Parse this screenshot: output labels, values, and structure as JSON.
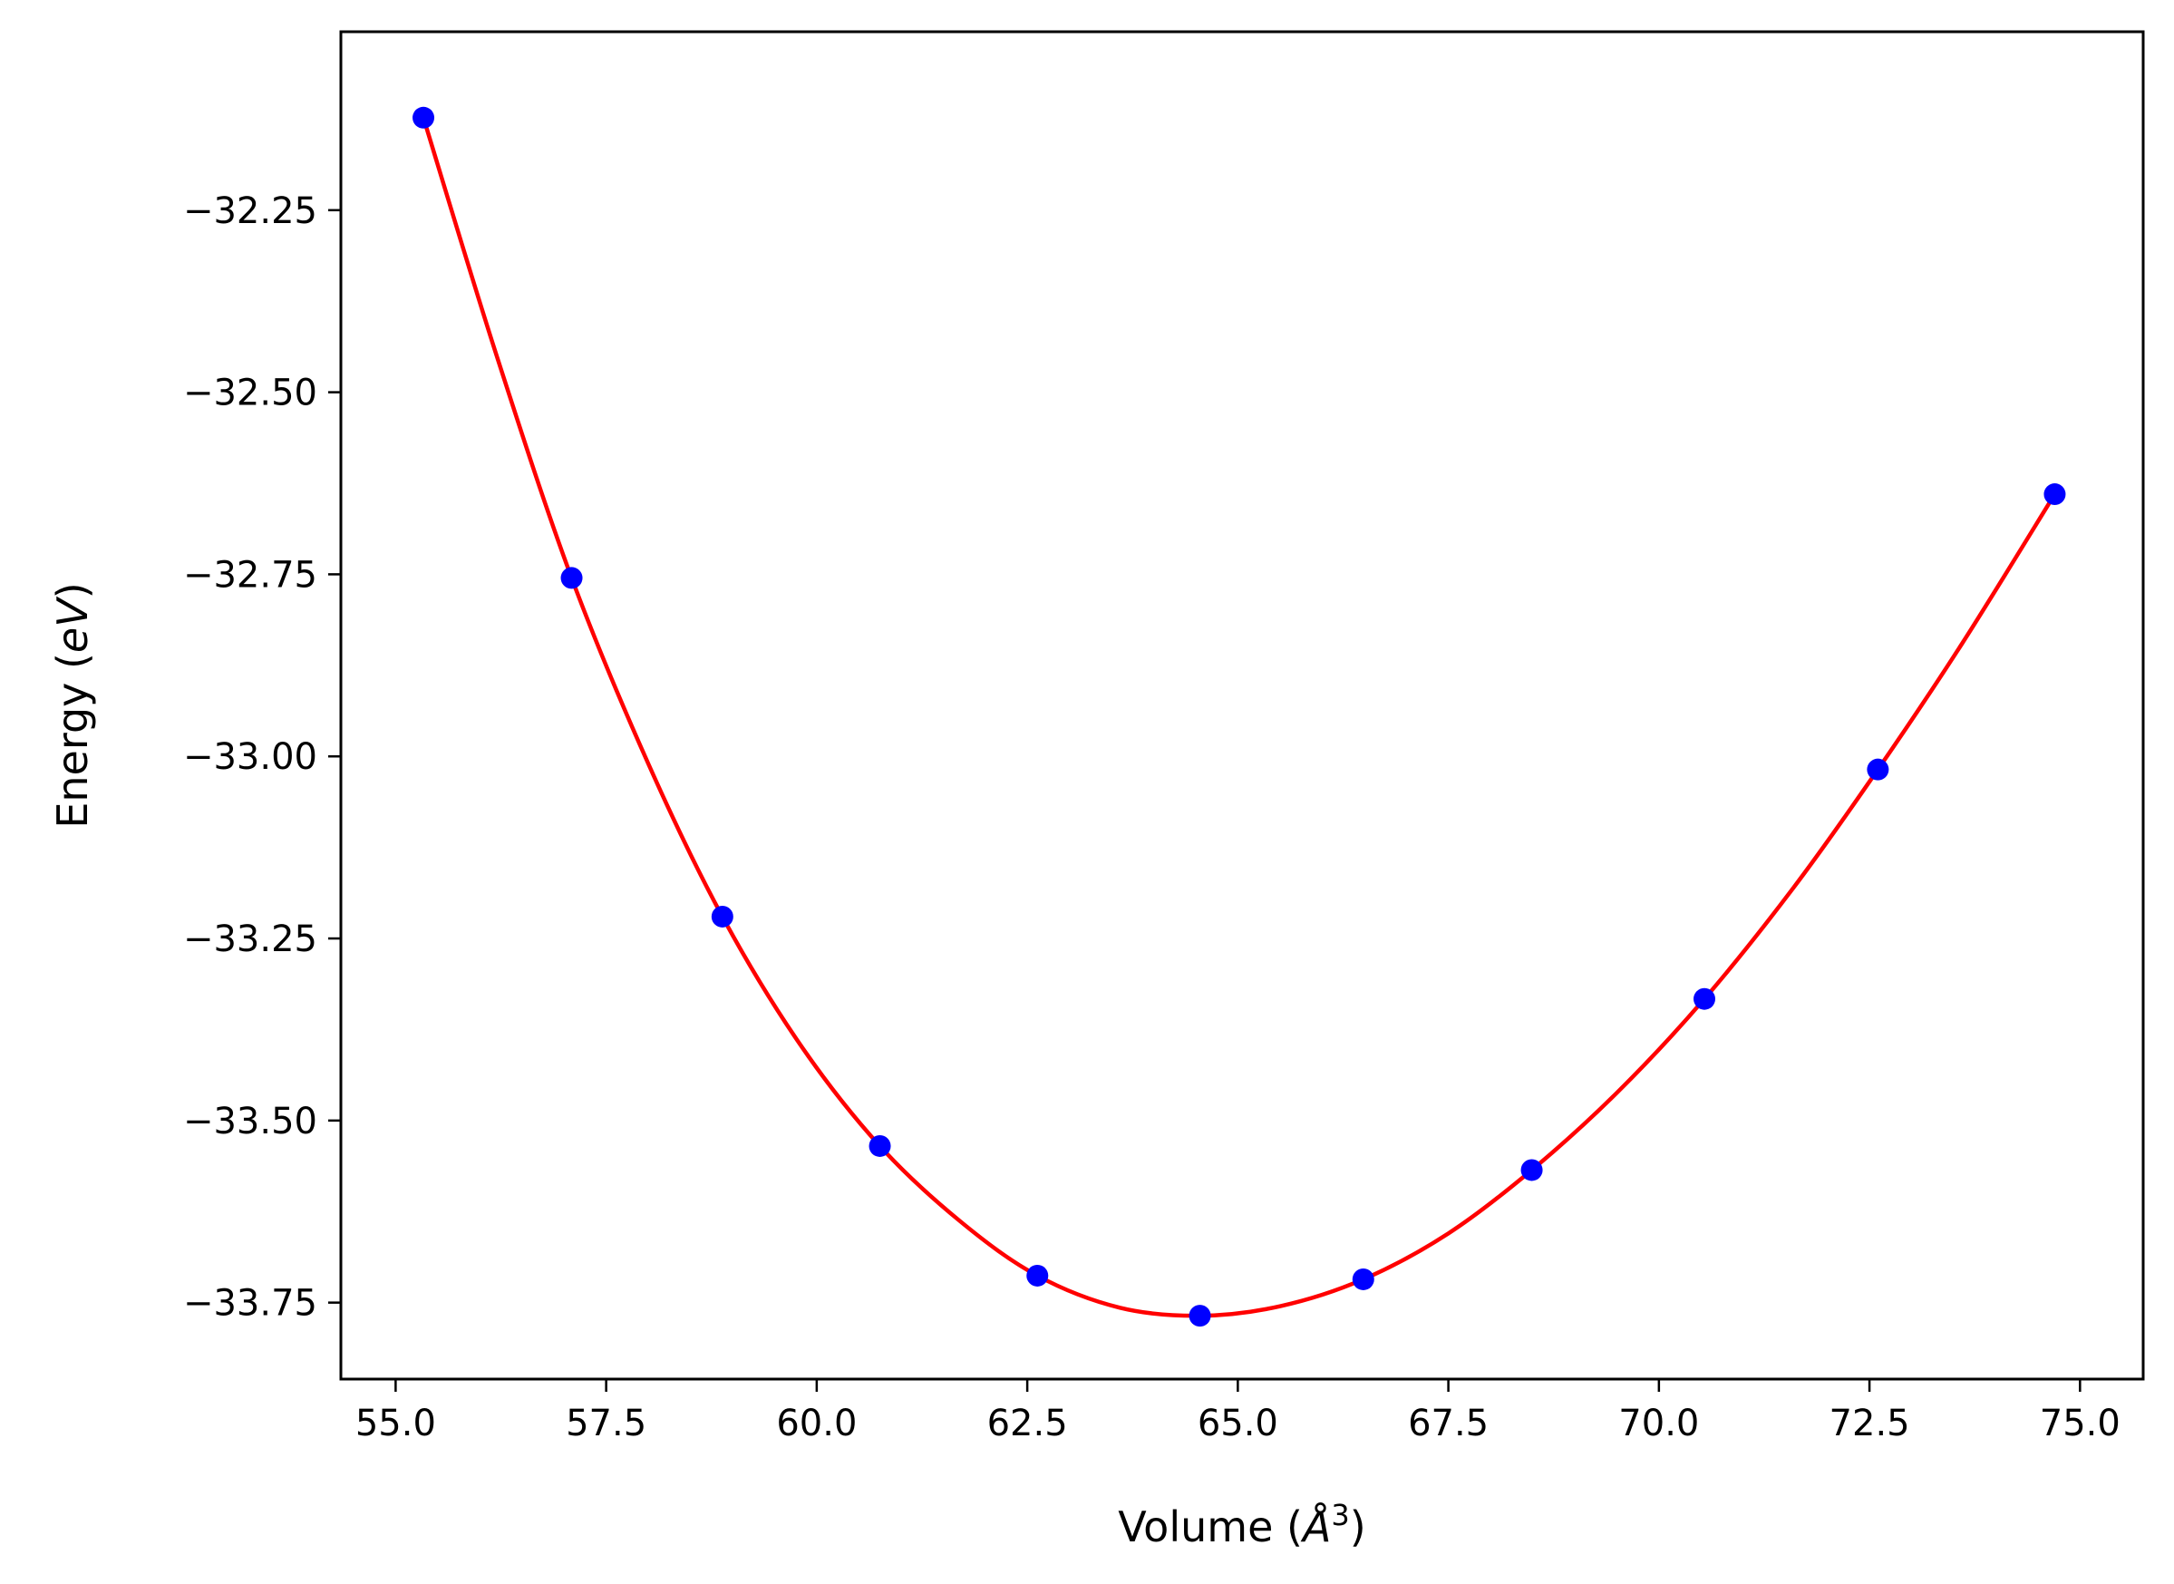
{
  "chart_data": {
    "type": "line",
    "title": "",
    "xlabel": "Volume (",
    "xlabel_unit_symbol": "Å",
    "xlabel_unit_power": "3",
    "xlabel_close": ")",
    "ylabel": "Energy (",
    "ylabel_unit": "eV",
    "ylabel_close": ")",
    "xlim": [
      54.35,
      75.75
    ],
    "ylim": [
      -33.855,
      -32.005
    ],
    "x_ticks": [
      55.0,
      57.5,
      60.0,
      62.5,
      65.0,
      67.5,
      70.0,
      72.5,
      75.0
    ],
    "x_tick_labels": [
      "55.0",
      "57.5",
      "60.0",
      "62.5",
      "65.0",
      "67.5",
      "70.0",
      "72.5",
      "75.0"
    ],
    "y_ticks": [
      -32.25,
      -32.5,
      -32.75,
      -33.0,
      -33.25,
      -33.5,
      -33.75
    ],
    "y_tick_labels": [
      "−32.25",
      "−32.50",
      "−32.75",
      "−33.00",
      "−33.25",
      "−33.50",
      "−33.75"
    ],
    "grid": false,
    "series": [
      {
        "kind": "points",
        "color": "#0000ff",
        "x": [
          55.33,
          57.09,
          58.88,
          60.75,
          62.62,
          64.55,
          66.49,
          68.49,
          70.54,
          72.6,
          74.7
        ],
        "y": [
          -32.123,
          -32.755,
          -33.22,
          -33.535,
          -33.713,
          -33.768,
          -33.718,
          -33.568,
          -33.333,
          -33.018,
          -32.64
        ]
      },
      {
        "kind": "fit-curve",
        "color": "#ff0000",
        "x": [
          55.33,
          56.2,
          57.09,
          58.0,
          58.88,
          59.8,
          60.75,
          61.7,
          62.62,
          63.6,
          64.55,
          65.5,
          66.49,
          67.5,
          68.49,
          69.5,
          70.54,
          71.6,
          72.6,
          73.6,
          74.7
        ],
        "y": [
          -32.123,
          -32.45,
          -32.755,
          -33.01,
          -33.22,
          -33.395,
          -33.535,
          -33.638,
          -33.713,
          -33.757,
          -33.768,
          -33.755,
          -33.718,
          -33.655,
          -33.568,
          -33.462,
          -33.333,
          -33.18,
          -33.018,
          -32.845,
          -32.64
        ]
      }
    ]
  }
}
